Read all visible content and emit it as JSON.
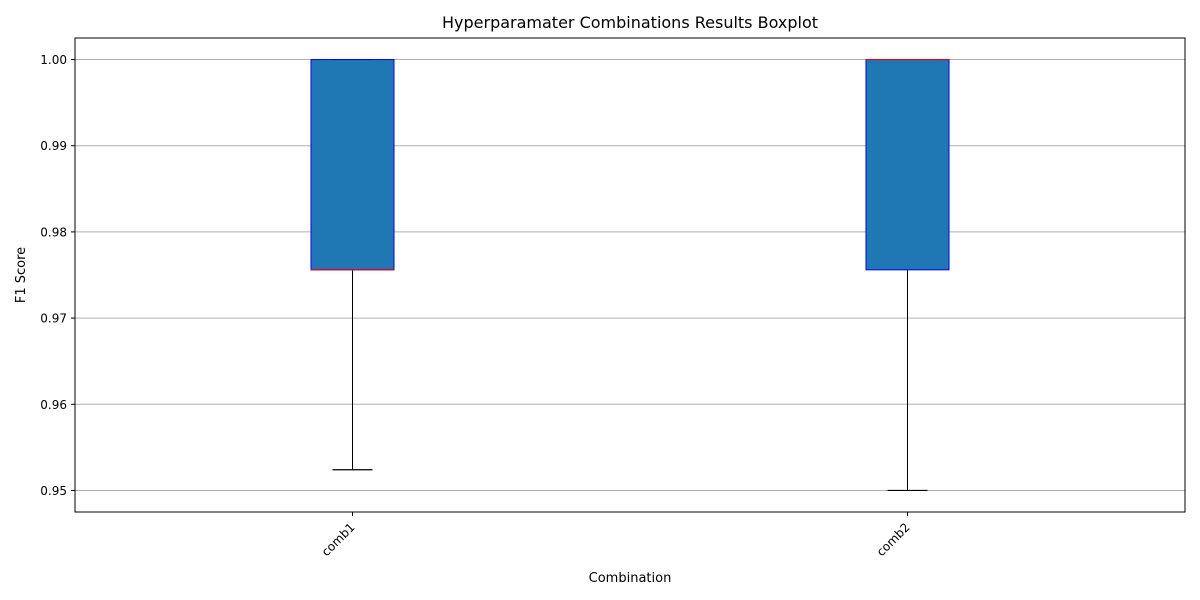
{
  "chart_data": {
    "type": "box",
    "title": "Hyperparamater Combinations Results Boxplot",
    "xlabel": "Combination",
    "ylabel": "F1 Score",
    "ylim": [
      0.9475,
      1.0025
    ],
    "yticks": [
      0.95,
      0.96,
      0.97,
      0.98,
      0.99,
      1.0
    ],
    "ytick_labels": [
      "0.95",
      "0.96",
      "0.97",
      "0.98",
      "0.99",
      "1.00"
    ],
    "grid": "y",
    "categories": [
      "comb1",
      "comb2"
    ],
    "boxes": [
      {
        "category": "comb1",
        "whisker_low": 0.9524,
        "q1": 0.9756,
        "median": 0.9756,
        "q3": 1.0,
        "whisker_high": 1.0
      },
      {
        "category": "comb2",
        "whisker_low": 0.95,
        "q1": 0.9756,
        "median": 1.0,
        "q3": 1.0,
        "whisker_high": 1.0
      }
    ],
    "box_fill": "#1f77b4",
    "box_edge": "#0000ff",
    "median_color": "#ff0000",
    "whisker_color": "#000000",
    "grid_color": "#b0b0b0"
  }
}
